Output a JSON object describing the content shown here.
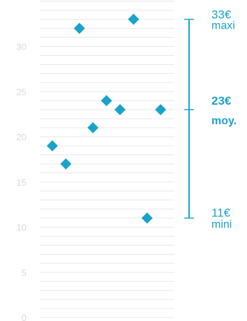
{
  "accent_color": "#1aa3c9",
  "gridline_color": "#e8e8e8",
  "tick_label_color": "#d9d9d9",
  "chart_data": {
    "type": "scatter",
    "title": "",
    "xlabel": "",
    "ylabel": "",
    "ylim": [
      0,
      35
    ],
    "yticks": [
      0,
      5,
      10,
      15,
      20,
      25,
      30
    ],
    "minor_grid_step": 1,
    "marker": "diamond",
    "points": [
      19,
      17,
      32,
      21,
      24,
      23,
      33,
      11,
      23
    ],
    "range_annotation": {
      "max": {
        "value": "33€",
        "label": "maxi",
        "y": 33
      },
      "avg": {
        "value": "23€",
        "label": "moy.",
        "y": 23
      },
      "min": {
        "value": "11€",
        "label": "mini",
        "y": 11
      }
    }
  }
}
